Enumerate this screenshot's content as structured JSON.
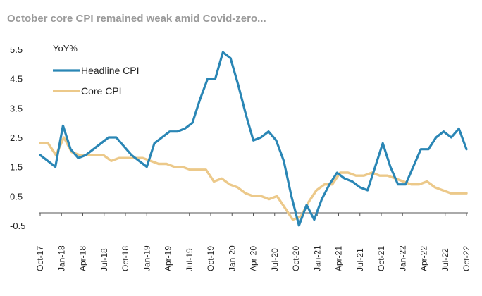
{
  "title": "October core CPI remained weak amid Covid-zero...",
  "chart_data": {
    "type": "line",
    "unit_label": "YoY%",
    "ylim": [
      -0.5,
      5.5
    ],
    "yticks": [
      5.5,
      4.5,
      3.5,
      2.5,
      1.5,
      0.5,
      -0.5
    ],
    "xtick_labels": [
      "Oct-17",
      "Jan-18",
      "Apr-18",
      "Jul-18",
      "Oct-18",
      "Jan-19",
      "Apr-19",
      "Jul-19",
      "Oct-19",
      "Jan-20",
      "Apr-20",
      "Jul-20",
      "Oct-20",
      "Jan-21",
      "Apr-21",
      "Jul-21",
      "Oct-21",
      "Jan-22",
      "Apr-22",
      "Jul-22",
      "Oct-22"
    ],
    "legend_position": "top-left",
    "grid": false,
    "series": [
      {
        "name": "Headline CPI",
        "color": "#2a86b5",
        "values": [
          1.9,
          1.7,
          1.5,
          2.9,
          2.1,
          1.8,
          1.9,
          2.1,
          2.3,
          2.5,
          2.5,
          2.2,
          1.9,
          1.7,
          1.5,
          2.3,
          2.5,
          2.7,
          2.7,
          2.8,
          3.0,
          3.8,
          4.5,
          4.5,
          5.4,
          5.2,
          4.3,
          3.3,
          2.4,
          2.5,
          2.7,
          2.4,
          1.7,
          0.5,
          -0.5,
          0.2,
          -0.3,
          0.4,
          0.9,
          1.3,
          1.1,
          1.0,
          0.8,
          0.7,
          1.5,
          2.3,
          1.5,
          0.9,
          0.9,
          1.5,
          2.1,
          2.1,
          2.5,
          2.7,
          2.5,
          2.8,
          2.1
        ]
      },
      {
        "name": "Core CPI",
        "color": "#ecc98a",
        "values": [
          2.3,
          2.3,
          1.9,
          2.5,
          2.0,
          1.9,
          1.9,
          1.9,
          1.9,
          1.7,
          1.8,
          1.8,
          1.8,
          1.8,
          1.7,
          1.6,
          1.6,
          1.5,
          1.5,
          1.4,
          1.4,
          1.4,
          1.0,
          1.1,
          0.9,
          0.8,
          0.6,
          0.5,
          0.5,
          0.4,
          0.5,
          0.1,
          -0.3,
          -0.2,
          0.3,
          0.7,
          0.9,
          0.9,
          1.3,
          1.3,
          1.2,
          1.2,
          1.3,
          1.2,
          1.2,
          1.1,
          1.0,
          0.9,
          0.9,
          1.0,
          0.8,
          0.7,
          0.6,
          0.6,
          0.6
        ]
      }
    ]
  }
}
